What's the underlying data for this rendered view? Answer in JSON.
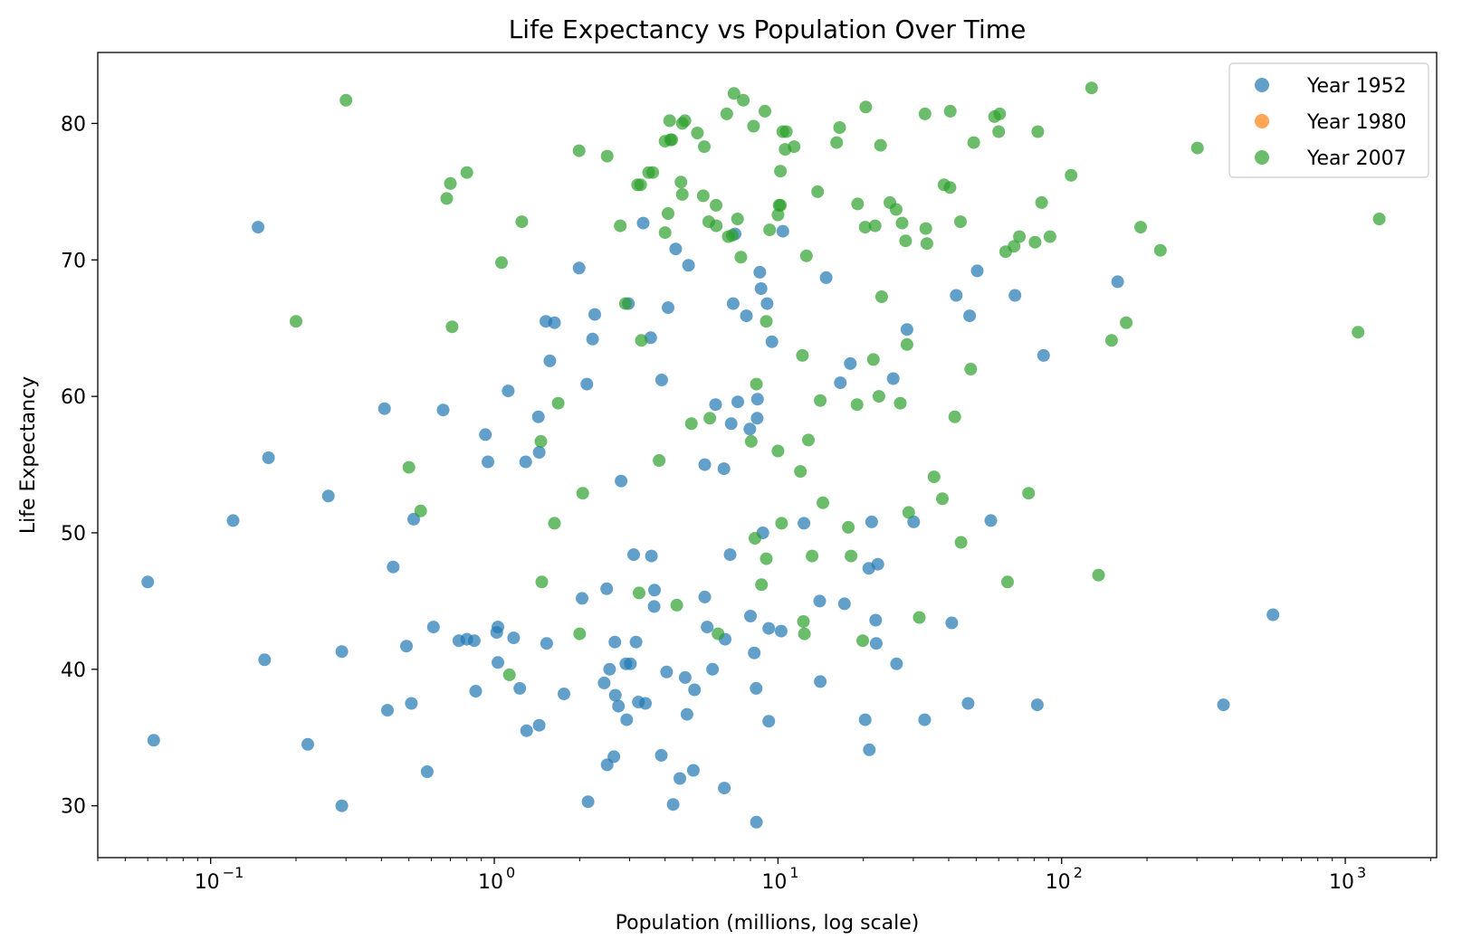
{
  "chart_data": {
    "type": "scatter",
    "title": "Life Expectancy vs Population Over Time",
    "xlabel": "Population (millions, log scale)",
    "ylabel": "Life Expectancy",
    "x_scale": "log",
    "xlim": [
      0.04,
      2100
    ],
    "ylim": [
      26.2,
      85.2
    ],
    "x_ticks": [
      {
        "value": 0.1,
        "base": "10",
        "exp": "−1"
      },
      {
        "value": 1,
        "base": "10",
        "exp": "0"
      },
      {
        "value": 10,
        "base": "10",
        "exp": "1"
      },
      {
        "value": 100,
        "base": "10",
        "exp": "2"
      },
      {
        "value": 1000,
        "base": "10",
        "exp": "3"
      }
    ],
    "y_ticks": [
      30,
      40,
      50,
      60,
      70,
      80
    ],
    "grid": false,
    "legend_position": "top-right",
    "series": [
      {
        "name": "Year 1952",
        "color": "#1f77b4",
        "points": [
          [
            0.06,
            46.4
          ],
          [
            0.063,
            34.8
          ],
          [
            0.12,
            50.9
          ],
          [
            0.147,
            72.4
          ],
          [
            0.155,
            40.7
          ],
          [
            0.16,
            55.5
          ],
          [
            0.22,
            34.5
          ],
          [
            0.26,
            52.7
          ],
          [
            0.29,
            30.0
          ],
          [
            0.29,
            41.3
          ],
          [
            0.41,
            59.1
          ],
          [
            0.42,
            37.0
          ],
          [
            0.44,
            47.5
          ],
          [
            0.49,
            41.7
          ],
          [
            0.51,
            37.5
          ],
          [
            0.52,
            51.0
          ],
          [
            0.58,
            32.5
          ],
          [
            0.61,
            43.1
          ],
          [
            0.66,
            59.0
          ],
          [
            0.75,
            42.1
          ],
          [
            0.8,
            42.2
          ],
          [
            0.85,
            42.1
          ],
          [
            0.86,
            38.4
          ],
          [
            0.93,
            57.2
          ],
          [
            0.95,
            55.2
          ],
          [
            1.02,
            42.7
          ],
          [
            1.03,
            43.1
          ],
          [
            1.03,
            40.5
          ],
          [
            1.12,
            60.4
          ],
          [
            1.17,
            42.3
          ],
          [
            1.23,
            38.6
          ],
          [
            1.29,
            55.2
          ],
          [
            1.3,
            35.5
          ],
          [
            1.43,
            58.5
          ],
          [
            1.44,
            55.9
          ],
          [
            1.44,
            35.9
          ],
          [
            1.52,
            65.5
          ],
          [
            1.53,
            41.9
          ],
          [
            1.57,
            62.6
          ],
          [
            1.63,
            65.4
          ],
          [
            1.76,
            38.2
          ],
          [
            1.99,
            69.4
          ],
          [
            2.04,
            45.2
          ],
          [
            2.12,
            60.9
          ],
          [
            2.14,
            30.3
          ],
          [
            2.22,
            64.2
          ],
          [
            2.26,
            66.0
          ],
          [
            2.44,
            39.0
          ],
          [
            2.49,
            45.9
          ],
          [
            2.5,
            33.0
          ],
          [
            2.55,
            40.0
          ],
          [
            2.64,
            33.6
          ],
          [
            2.66,
            42.0
          ],
          [
            2.67,
            38.1
          ],
          [
            2.74,
            37.3
          ],
          [
            2.8,
            53.8
          ],
          [
            2.91,
            40.4
          ],
          [
            2.93,
            36.3
          ],
          [
            2.97,
            66.8
          ],
          [
            3.02,
            40.4
          ],
          [
            3.1,
            48.4
          ],
          [
            3.16,
            42.0
          ],
          [
            3.22,
            37.6
          ],
          [
            3.35,
            72.7
          ],
          [
            3.41,
            37.5
          ],
          [
            3.56,
            64.3
          ],
          [
            3.58,
            48.3
          ],
          [
            3.66,
            44.6
          ],
          [
            3.67,
            45.8
          ],
          [
            3.88,
            33.7
          ],
          [
            3.89,
            61.2
          ],
          [
            4.05,
            39.8
          ],
          [
            4.1,
            66.5
          ],
          [
            4.27,
            30.1
          ],
          [
            4.36,
            70.8
          ],
          [
            4.51,
            32.0
          ],
          [
            4.71,
            39.4
          ],
          [
            4.78,
            36.7
          ],
          [
            4.84,
            69.6
          ],
          [
            5.03,
            32.6
          ],
          [
            5.08,
            38.5
          ],
          [
            5.52,
            45.3
          ],
          [
            5.52,
            55.0
          ],
          [
            5.63,
            43.1
          ],
          [
            5.88,
            40.0
          ],
          [
            6.03,
            59.4
          ],
          [
            6.45,
            54.7
          ],
          [
            6.47,
            31.3
          ],
          [
            6.51,
            42.2
          ],
          [
            6.78,
            48.4
          ],
          [
            6.84,
            58.0
          ],
          [
            6.95,
            66.8
          ],
          [
            7.06,
            71.9
          ],
          [
            7.22,
            59.6
          ],
          [
            7.74,
            65.9
          ],
          [
            7.96,
            57.6
          ],
          [
            8.0,
            43.9
          ],
          [
            8.25,
            41.2
          ],
          [
            8.38,
            38.6
          ],
          [
            8.4,
            28.8
          ],
          [
            8.45,
            58.4
          ],
          [
            8.47,
            59.8
          ],
          [
            8.63,
            69.1
          ],
          [
            8.72,
            67.9
          ],
          [
            8.85,
            50.0
          ],
          [
            9.16,
            66.8
          ],
          [
            9.28,
            43.0
          ],
          [
            9.28,
            36.2
          ],
          [
            9.52,
            64.0
          ],
          [
            10.26,
            42.8
          ],
          [
            10.41,
            72.1
          ],
          [
            12.35,
            50.7
          ],
          [
            14.04,
            45.0
          ],
          [
            14.1,
            39.1
          ],
          [
            14.79,
            68.7
          ],
          [
            16.6,
            61.0
          ],
          [
            17.15,
            44.8
          ],
          [
            18.0,
            62.4
          ],
          [
            20.3,
            36.3
          ],
          [
            20.9,
            47.4
          ],
          [
            21.0,
            34.1
          ],
          [
            21.4,
            50.8
          ],
          [
            22.1,
            43.6
          ],
          [
            22.2,
            41.9
          ],
          [
            22.5,
            47.7
          ],
          [
            25.5,
            61.3
          ],
          [
            26.2,
            40.4
          ],
          [
            28.5,
            64.9
          ],
          [
            30.1,
            50.8
          ],
          [
            32.9,
            36.3
          ],
          [
            41.0,
            43.4
          ],
          [
            42.5,
            67.4
          ],
          [
            46.8,
            37.5
          ],
          [
            47.4,
            65.9
          ],
          [
            50.4,
            69.2
          ],
          [
            56.3,
            50.9
          ],
          [
            68.5,
            67.4
          ],
          [
            82.1,
            37.4
          ],
          [
            86.4,
            63.0
          ],
          [
            157.6,
            68.4
          ],
          [
            372.0,
            37.4
          ],
          [
            556.3,
            44.0
          ]
        ]
      },
      {
        "name": "Year 1980",
        "color": "#ff7f0e",
        "points": []
      },
      {
        "name": "Year 2007",
        "color": "#2ca02c",
        "points": [
          [
            0.2,
            65.5
          ],
          [
            0.3,
            81.7
          ],
          [
            0.5,
            54.8
          ],
          [
            0.55,
            51.6
          ],
          [
            0.68,
            74.5
          ],
          [
            0.7,
            75.6
          ],
          [
            0.71,
            65.1
          ],
          [
            0.8,
            76.4
          ],
          [
            1.06,
            69.8
          ],
          [
            1.13,
            39.6
          ],
          [
            1.25,
            72.8
          ],
          [
            1.46,
            56.7
          ],
          [
            1.47,
            46.4
          ],
          [
            1.63,
            50.7
          ],
          [
            1.68,
            59.5
          ],
          [
            1.99,
            78.0
          ],
          [
            2.0,
            42.6
          ],
          [
            2.05,
            52.9
          ],
          [
            2.5,
            77.6
          ],
          [
            2.78,
            72.5
          ],
          [
            2.9,
            66.8
          ],
          [
            3.2,
            75.5
          ],
          [
            3.24,
            45.6
          ],
          [
            3.28,
            75.5
          ],
          [
            3.3,
            64.1
          ],
          [
            3.5,
            76.4
          ],
          [
            3.62,
            76.4
          ],
          [
            3.81,
            55.3
          ],
          [
            4.0,
            78.7
          ],
          [
            4.0,
            72.0
          ],
          [
            4.1,
            73.4
          ],
          [
            4.15,
            80.2
          ],
          [
            4.18,
            78.8
          ],
          [
            4.22,
            78.8
          ],
          [
            4.4,
            44.7
          ],
          [
            4.55,
            75.7
          ],
          [
            4.6,
            74.8
          ],
          [
            4.6,
            80.0
          ],
          [
            4.7,
            80.2
          ],
          [
            4.95,
            58.0
          ],
          [
            5.2,
            79.3
          ],
          [
            5.45,
            74.7
          ],
          [
            5.5,
            78.3
          ],
          [
            5.7,
            72.8
          ],
          [
            5.75,
            58.4
          ],
          [
            6.05,
            74.0
          ],
          [
            6.06,
            72.5
          ],
          [
            6.15,
            42.6
          ],
          [
            6.6,
            80.7
          ],
          [
            6.68,
            71.7
          ],
          [
            6.9,
            71.8
          ],
          [
            7.0,
            82.2
          ],
          [
            7.2,
            73.0
          ],
          [
            7.4,
            70.2
          ],
          [
            7.55,
            81.7
          ],
          [
            8.05,
            56.7
          ],
          [
            8.2,
            79.8
          ],
          [
            8.3,
            49.6
          ],
          [
            8.4,
            60.9
          ],
          [
            8.75,
            46.2
          ],
          [
            9.0,
            80.9
          ],
          [
            9.1,
            48.1
          ],
          [
            9.1,
            65.5
          ],
          [
            9.35,
            72.2
          ],
          [
            10.0,
            56.0
          ],
          [
            10.0,
            73.3
          ],
          [
            10.1,
            74.0
          ],
          [
            10.2,
            74.0
          ],
          [
            10.2,
            76.5
          ],
          [
            10.3,
            50.7
          ],
          [
            10.4,
            79.4
          ],
          [
            10.6,
            78.1
          ],
          [
            10.7,
            79.4
          ],
          [
            11.4,
            78.3
          ],
          [
            12.0,
            54.5
          ],
          [
            12.2,
            63.0
          ],
          [
            12.3,
            43.5
          ],
          [
            12.4,
            42.6
          ],
          [
            12.6,
            70.3
          ],
          [
            12.8,
            56.8
          ],
          [
            13.2,
            48.3
          ],
          [
            13.8,
            75.0
          ],
          [
            14.1,
            59.7
          ],
          [
            14.4,
            52.2
          ],
          [
            16.1,
            78.6
          ],
          [
            16.5,
            79.7
          ],
          [
            17.7,
            50.4
          ],
          [
            18.1,
            48.3
          ],
          [
            19.0,
            59.4
          ],
          [
            19.1,
            74.1
          ],
          [
            19.9,
            42.1
          ],
          [
            20.3,
            72.4
          ],
          [
            20.4,
            81.2
          ],
          [
            21.7,
            62.7
          ],
          [
            22.0,
            72.5
          ],
          [
            22.7,
            60.0
          ],
          [
            23.0,
            78.4
          ],
          [
            23.2,
            67.3
          ],
          [
            24.8,
            74.2
          ],
          [
            26.1,
            73.7
          ],
          [
            27.0,
            59.5
          ],
          [
            27.4,
            72.7
          ],
          [
            28.2,
            71.4
          ],
          [
            28.9,
            51.5
          ],
          [
            28.5,
            63.8
          ],
          [
            31.5,
            43.8
          ],
          [
            33.0,
            80.7
          ],
          [
            33.2,
            72.3
          ],
          [
            33.5,
            71.2
          ],
          [
            35.5,
            54.1
          ],
          [
            38.0,
            52.5
          ],
          [
            38.5,
            75.5
          ],
          [
            40.4,
            75.3
          ],
          [
            40.5,
            80.9
          ],
          [
            42.0,
            58.5
          ],
          [
            44.0,
            72.8
          ],
          [
            44.2,
            49.3
          ],
          [
            47.8,
            62.0
          ],
          [
            49.0,
            78.6
          ],
          [
            58.0,
            80.5
          ],
          [
            60.0,
            79.4
          ],
          [
            60.5,
            80.7
          ],
          [
            63.5,
            70.6
          ],
          [
            64.5,
            46.4
          ],
          [
            68.0,
            71.0
          ],
          [
            71.0,
            71.7
          ],
          [
            76.5,
            52.9
          ],
          [
            80.6,
            71.3
          ],
          [
            82.4,
            79.4
          ],
          [
            85.0,
            74.2
          ],
          [
            91.0,
            71.7
          ],
          [
            108.0,
            76.2
          ],
          [
            127.5,
            82.6
          ],
          [
            135.0,
            46.9
          ],
          [
            150.0,
            64.1
          ],
          [
            169.0,
            65.4
          ],
          [
            190.0,
            72.4
          ],
          [
            223.0,
            70.7
          ],
          [
            301.0,
            78.2
          ],
          [
            1110.0,
            64.7
          ],
          [
            1318.0,
            73.0
          ]
        ]
      }
    ]
  }
}
